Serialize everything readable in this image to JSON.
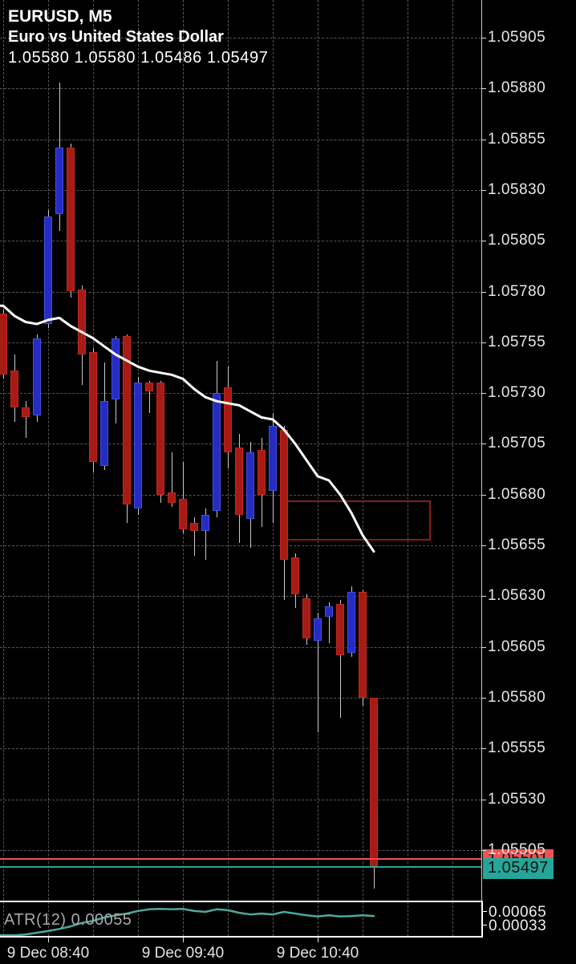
{
  "header": {
    "symbol": "EURUSD, M5",
    "description": "Euro vs United States Dollar",
    "ohlc_line": "1.05580 1.05580 1.05486 1.05497"
  },
  "axis": {
    "price_ticks": [
      "1.05905",
      "1.05880",
      "1.05855",
      "1.05830",
      "1.05805",
      "1.05780",
      "1.05755",
      "1.05730",
      "1.05705",
      "1.05680",
      "1.05655",
      "1.05630",
      "1.05605",
      "1.05580",
      "1.05555",
      "1.05530",
      "1.05505"
    ],
    "time_labels": [
      "9 Dec 08:40",
      "9 Dec 09:40",
      "9 Dec 10:40"
    ],
    "sub_pane_labels": [
      "0.00065",
      "0.00033"
    ]
  },
  "price_marks": {
    "order_line": {
      "label": "1.05501",
      "value": 1.05501,
      "color": "#ef5350"
    },
    "bid_line": {
      "label": "1.05497",
      "value": 1.05497,
      "color": "#26a69a"
    }
  },
  "indicator": {
    "label": "ATR(12) 0.00055",
    "name": "ATR(12)",
    "current_value": "0.00055"
  },
  "annotations": {
    "rectangle": {
      "price_top": 1.05677,
      "price_bottom": 1.05659,
      "idx_start": 24.9,
      "idx_end": 37.8,
      "color": "#8e1b1b"
    }
  },
  "colors": {
    "background": "#000000",
    "bull_fill": "#262cc2",
    "bull_border": "#4350dd",
    "bear_fill": "#a81b15",
    "bear_border": "#c1271f",
    "wick": "#c9c9c9",
    "ma_line": "#ffffff",
    "atr_line": "#4da99d",
    "grid": "#565656",
    "bid_badge": "#26a69a",
    "order_badge": "#ef5350"
  },
  "chart_data": {
    "type": "candlestick",
    "title": "EURUSD, M5",
    "subtitle": "Euro vs United States Dollar",
    "ohlc_display": {
      "open": "1.05580",
      "high": "1.05580",
      "low": "1.05486",
      "close": "1.05497"
    },
    "y_axis": {
      "min": 1.05486,
      "max": 1.05905,
      "tick_step": 0.00025,
      "grid": true
    },
    "x_axis": {
      "date": "9 Dec",
      "hour_labels": [
        "08:40",
        "09:40",
        "10:40"
      ],
      "candle_interval_min": 5
    },
    "candles": [
      {
        "time": "08:20",
        "o": 1.05769,
        "h": 1.05771,
        "l": 1.05737,
        "c": 1.05739
      },
      {
        "time": "08:25",
        "o": 1.05741,
        "h": 1.05749,
        "l": 1.05716,
        "c": 1.05723
      },
      {
        "time": "08:30",
        "o": 1.05723,
        "h": 1.05726,
        "l": 1.05708,
        "c": 1.05718
      },
      {
        "time": "08:35",
        "o": 1.05719,
        "h": 1.05759,
        "l": 1.05716,
        "c": 1.05757
      },
      {
        "time": "08:40",
        "o": 1.05764,
        "h": 1.0582,
        "l": 1.05762,
        "c": 1.05817
      },
      {
        "time": "08:45",
        "o": 1.05818,
        "h": 1.05883,
        "l": 1.0581,
        "c": 1.05851
      },
      {
        "time": "08:50",
        "o": 1.05851,
        "h": 1.05853,
        "l": 1.05777,
        "c": 1.0578
      },
      {
        "time": "08:55",
        "o": 1.05781,
        "h": 1.05783,
        "l": 1.05734,
        "c": 1.05749
      },
      {
        "time": "09:00",
        "o": 1.0575,
        "h": 1.05752,
        "l": 1.05691,
        "c": 1.05696
      },
      {
        "time": "09:05",
        "o": 1.05694,
        "h": 1.05745,
        "l": 1.05692,
        "c": 1.05726
      },
      {
        "time": "09:10",
        "o": 1.05727,
        "h": 1.05758,
        "l": 1.05715,
        "c": 1.05757
      },
      {
        "time": "09:15",
        "o": 1.05758,
        "h": 1.05759,
        "l": 1.05666,
        "c": 1.05675
      },
      {
        "time": "09:20",
        "o": 1.05673,
        "h": 1.05738,
        "l": 1.0567,
        "c": 1.05735
      },
      {
        "time": "09:25",
        "o": 1.05735,
        "h": 1.05736,
        "l": 1.0572,
        "c": 1.05731
      },
      {
        "time": "09:30",
        "o": 1.05735,
        "h": 1.05736,
        "l": 1.05676,
        "c": 1.0568
      },
      {
        "time": "09:35",
        "o": 1.05681,
        "h": 1.05701,
        "l": 1.05674,
        "c": 1.05676
      },
      {
        "time": "09:40",
        "o": 1.05678,
        "h": 1.05696,
        "l": 1.05661,
        "c": 1.05663
      },
      {
        "time": "09:45",
        "o": 1.05666,
        "h": 1.05669,
        "l": 1.0565,
        "c": 1.05662
      },
      {
        "time": "09:50",
        "o": 1.05662,
        "h": 1.05673,
        "l": 1.05648,
        "c": 1.0567
      },
      {
        "time": "09:55",
        "o": 1.05672,
        "h": 1.05746,
        "l": 1.05669,
        "c": 1.0573
      },
      {
        "time": "10:00",
        "o": 1.05733,
        "h": 1.05743,
        "l": 1.05693,
        "c": 1.05701
      },
      {
        "time": "10:05",
        "o": 1.05703,
        "h": 1.0571,
        "l": 1.05656,
        "c": 1.0567
      },
      {
        "time": "10:10",
        "o": 1.05668,
        "h": 1.05706,
        "l": 1.05654,
        "c": 1.05701
      },
      {
        "time": "10:15",
        "o": 1.05702,
        "h": 1.05708,
        "l": 1.05664,
        "c": 1.0568
      },
      {
        "time": "10:20",
        "o": 1.05682,
        "h": 1.0572,
        "l": 1.05666,
        "c": 1.05714
      },
      {
        "time": "10:25",
        "o": 1.05712,
        "h": 1.05714,
        "l": 1.05628,
        "c": 1.05648
      },
      {
        "time": "10:30",
        "o": 1.05649,
        "h": 1.05651,
        "l": 1.05624,
        "c": 1.05631
      },
      {
        "time": "10:35",
        "o": 1.05629,
        "h": 1.05631,
        "l": 1.05606,
        "c": 1.05609
      },
      {
        "time": "10:40",
        "o": 1.05608,
        "h": 1.05622,
        "l": 1.05563,
        "c": 1.05619
      },
      {
        "time": "10:45",
        "o": 1.0562,
        "h": 1.05627,
        "l": 1.05607,
        "c": 1.05625
      },
      {
        "time": "10:50",
        "o": 1.05626,
        "h": 1.05628,
        "l": 1.0557,
        "c": 1.05601
      },
      {
        "time": "10:55",
        "o": 1.05602,
        "h": 1.05635,
        "l": 1.056,
        "c": 1.05632
      },
      {
        "time": "11:00",
        "o": 1.05632,
        "h": 1.05633,
        "l": 1.05576,
        "c": 1.0558
      },
      {
        "time": "11:05",
        "o": 1.0558,
        "h": 1.0558,
        "l": 1.05486,
        "c": 1.05497
      }
    ],
    "ma_line": {
      "name": "moving-average",
      "values": [
        1.05773,
        1.05768,
        1.05765,
        1.05764,
        1.05766,
        1.05767,
        1.05763,
        1.0576,
        1.05757,
        1.05753,
        1.05749,
        1.05746,
        1.05743,
        1.05741,
        1.0574,
        1.05739,
        1.05737,
        1.05732,
        1.05728,
        1.05726,
        1.05725,
        1.05724,
        1.05721,
        1.05718,
        1.05717,
        1.05712,
        1.05705,
        1.05697,
        1.05689,
        1.05687,
        1.0568,
        1.05671,
        1.0566,
        1.05652
      ]
    },
    "atr": {
      "name": "ATR(12)",
      "current": 0.00055,
      "axis_labels": [
        0.00065,
        0.00033
      ],
      "values": [
        0.0001,
        0.0001,
        0.00012,
        0.00016,
        0.0002,
        0.00025,
        0.00031,
        0.00039,
        0.00044,
        0.00052,
        0.00057,
        0.00061,
        0.00067,
        0.00071,
        0.00072,
        0.00071,
        0.00072,
        0.00067,
        0.00065,
        0.00071,
        0.00069,
        0.00063,
        0.00059,
        0.00061,
        0.00059,
        0.00065,
        0.00061,
        0.00057,
        0.00054,
        0.00057,
        0.00054,
        0.00055,
        0.00057,
        0.00055
      ]
    }
  }
}
